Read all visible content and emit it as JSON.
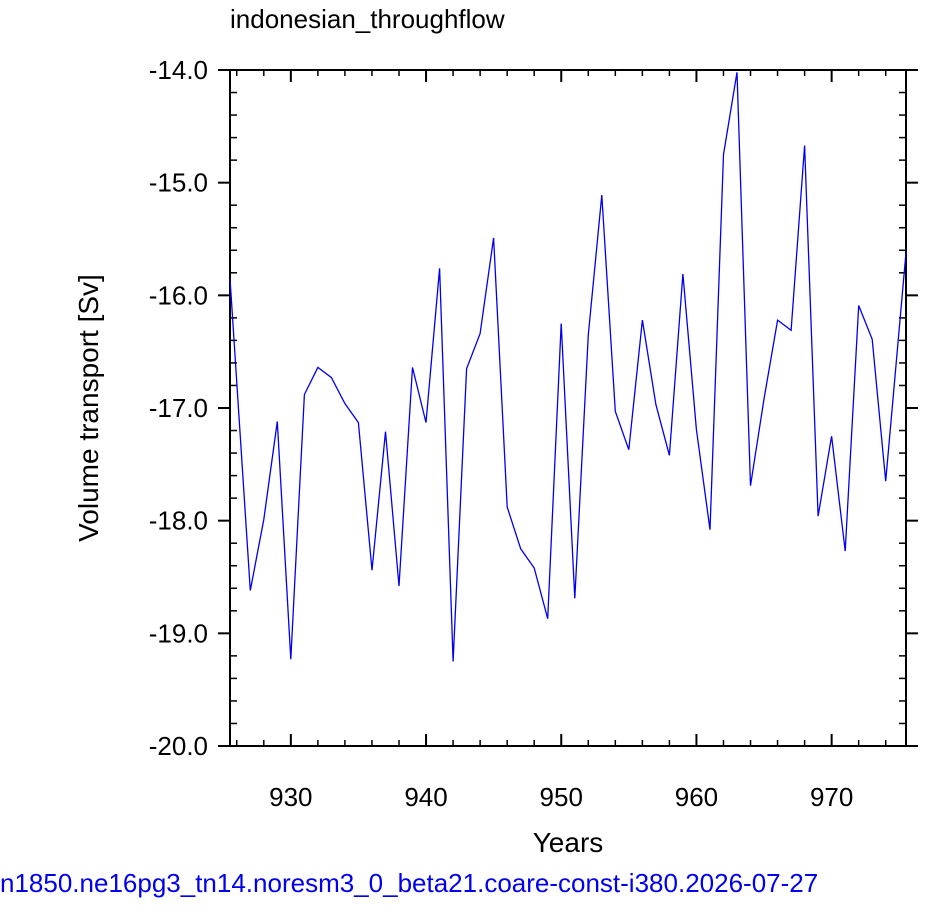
{
  "footer": {
    "caption": "n1850.ne16pg3_tn14.noresm3_0_beta21.coare-const-i380.2026-07-27",
    "color": "#0000ee"
  },
  "chart_data": {
    "type": "line",
    "title": "indonesian_throughflow",
    "xlabel": "Years",
    "ylabel": "Volume transport [Sv]",
    "xlim": [
      925.5,
      975.5
    ],
    "ylim": [
      -20.0,
      -14.0
    ],
    "x_ticks": [
      930,
      940,
      950,
      960,
      970
    ],
    "x_tick_labels": [
      "930",
      "940",
      "950",
      "960",
      "970"
    ],
    "y_ticks": [
      -20.0,
      -19.0,
      -18.0,
      -17.0,
      -16.0,
      -15.0,
      -14.0
    ],
    "y_tick_labels": [
      "-20.0",
      "-19.0",
      "-18.0",
      "-17.0",
      "-16.0",
      "-15.0",
      "-14.0"
    ],
    "grid": false,
    "line_color": "#0000ee",
    "series": [
      {
        "x": [
          925.5,
          927,
          928,
          929,
          930,
          931,
          932,
          933,
          934,
          935,
          936,
          937,
          938,
          939,
          940,
          941,
          942,
          943,
          944,
          945,
          946,
          947,
          948,
          949,
          950,
          951,
          952,
          953,
          954,
          955,
          956,
          957,
          958,
          959,
          960,
          961,
          962,
          963,
          964,
          965,
          966,
          967,
          968,
          969,
          970,
          971,
          972,
          973,
          974,
          975.5
        ],
        "values": [
          -15.85,
          -18.62,
          -17.99,
          -17.12,
          -19.23,
          -16.88,
          -16.64,
          -16.73,
          -16.96,
          -17.13,
          -18.44,
          -17.21,
          -18.58,
          -16.64,
          -17.13,
          -15.76,
          -19.25,
          -16.65,
          -16.34,
          -15.49,
          -17.88,
          -18.25,
          -18.42,
          -18.87,
          -16.25,
          -18.69,
          -16.35,
          -15.11,
          -17.03,
          -17.37,
          -16.22,
          -16.97,
          -17.42,
          -15.81,
          -17.19,
          -18.08,
          -14.75,
          -14.02,
          -17.69,
          -16.92,
          -16.22,
          -16.31,
          -14.67,
          -17.96,
          -17.25,
          -18.27,
          -16.09,
          -16.39,
          -17.65,
          -15.62
        ]
      }
    ]
  }
}
